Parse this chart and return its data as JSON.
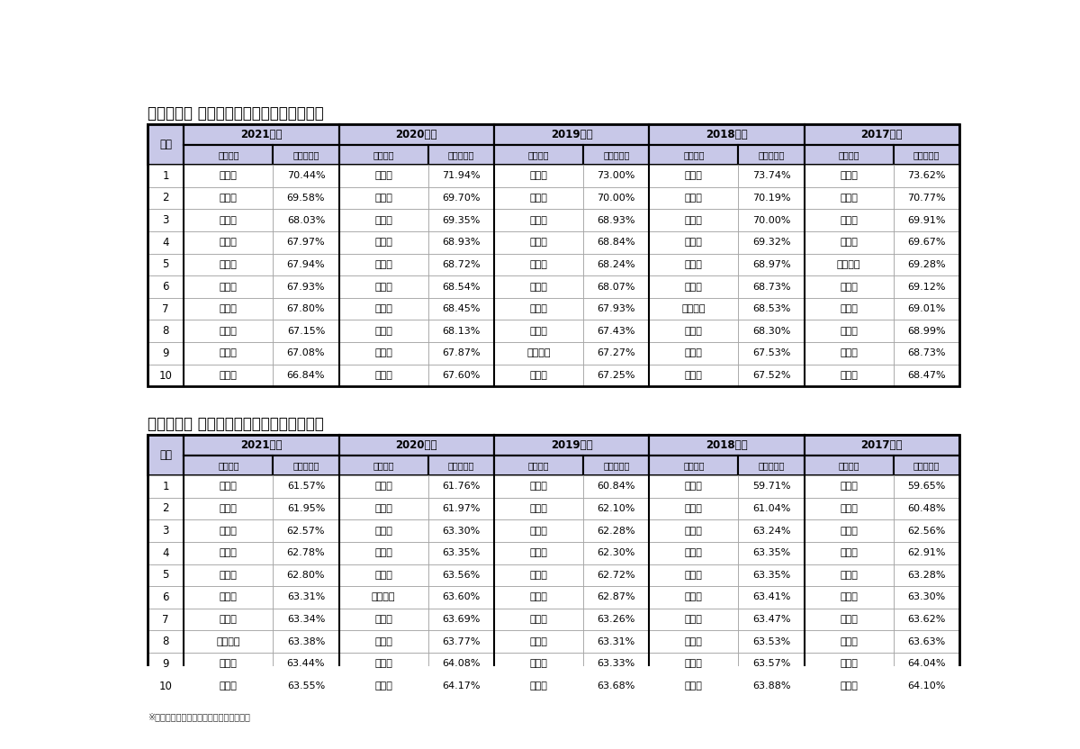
{
  "table1_title": "都道府県別 赤字法人率ランキング（降順）",
  "table2_title": "都道府県別 赤字法人率ランキング（昇順）",
  "footer": "※出典：東京商工リサーチより作成・引用",
  "years": [
    "2021年度",
    "2020年度",
    "2019年度",
    "2018年度",
    "2017年度"
  ],
  "desc_data": [
    [
      1,
      "徳島県",
      "70.44%",
      "徳島県",
      "71.94%",
      "徳島県",
      "73.00%",
      "徳島県",
      "73.74%",
      "徳島県",
      "73.62%"
    ],
    [
      2,
      "香川県",
      "69.58%",
      "長野県",
      "69.70%",
      "長野県",
      "70.00%",
      "長野県",
      "70.19%",
      "長野県",
      "70.77%"
    ],
    [
      3,
      "長野県",
      "68.03%",
      "香川県",
      "69.35%",
      "栃木県",
      "68.93%",
      "香川県",
      "70.00%",
      "香川県",
      "69.91%"
    ],
    [
      4,
      "愛媛県",
      "67.97%",
      "栃木県",
      "68.93%",
      "香川県",
      "68.84%",
      "栃木県",
      "69.32%",
      "栃木県",
      "69.67%"
    ],
    [
      5,
      "栃木県",
      "67.94%",
      "群馬県",
      "68.72%",
      "群馬県",
      "68.24%",
      "大分県",
      "68.97%",
      "神奈川県",
      "69.28%"
    ],
    [
      6,
      "群馬県",
      "67.93%",
      "京都府",
      "68.54%",
      "大分県",
      "68.07%",
      "群馬県",
      "68.73%",
      "愛媛県",
      "69.12%"
    ],
    [
      7,
      "京都府",
      "67.80%",
      "愛媛県",
      "68.45%",
      "愛媛県",
      "67.93%",
      "神奈川県",
      "68.53%",
      "群馬県",
      "69.01%"
    ],
    [
      8,
      "福島県",
      "67.15%",
      "山梨県",
      "68.13%",
      "熊本県",
      "67.43%",
      "愛媛県",
      "68.30%",
      "大分県",
      "68.99%"
    ],
    [
      9,
      "熊本県",
      "67.08%",
      "福島県",
      "67.87%",
      "神奈川県",
      "67.27%",
      "岡山県",
      "67.53%",
      "京都府",
      "68.73%"
    ],
    [
      10,
      "山梨県",
      "66.84%",
      "熊本県",
      "67.60%",
      "宮城県",
      "67.25%",
      "京都府",
      "67.52%",
      "静岡県",
      "68.47%"
    ]
  ],
  "asc_data": [
    [
      1,
      "佐賀県",
      "61.57%",
      "青森県",
      "61.76%",
      "沖縄県",
      "60.84%",
      "沖縄県",
      "59.71%",
      "沖縄県",
      "59.65%"
    ],
    [
      2,
      "青森県",
      "61.95%",
      "佐賀県",
      "61.97%",
      "佐賀県",
      "62.10%",
      "青森県",
      "61.04%",
      "青森県",
      "60.48%"
    ],
    [
      3,
      "高知県",
      "62.57%",
      "福井県",
      "63.30%",
      "青森県",
      "62.28%",
      "山形県",
      "63.24%",
      "岩手県",
      "62.56%"
    ],
    [
      4,
      "長崎県",
      "62.78%",
      "北海道",
      "63.35%",
      "大阪府",
      "62.30%",
      "大阪府",
      "63.35%",
      "長崎県",
      "62.91%"
    ],
    [
      5,
      "福井県",
      "62.80%",
      "長崎県",
      "63.56%",
      "福岡県",
      "62.72%",
      "岩手県",
      "63.35%",
      "山形県",
      "63.28%"
    ],
    [
      6,
      "福岡県",
      "63.31%",
      "和歌山県",
      "63.60%",
      "北海道",
      "62.87%",
      "福岡県",
      "63.41%",
      "佐賀県",
      "63.30%"
    ],
    [
      7,
      "山口県",
      "63.34%",
      "山口県",
      "63.69%",
      "富山県",
      "63.26%",
      "佐賀県",
      "63.47%",
      "北海道",
      "63.62%"
    ],
    [
      8,
      "和歌山県",
      "63.38%",
      "福岡県",
      "63.77%",
      "福井県",
      "63.31%",
      "北海道",
      "63.53%",
      "福岡県",
      "63.63%"
    ],
    [
      9,
      "滋賀県",
      "63.44%",
      "秋田県",
      "64.08%",
      "岩手県",
      "63.33%",
      "長崎県",
      "63.57%",
      "富山県",
      "64.04%"
    ],
    [
      10,
      "大阪府",
      "63.55%",
      "大阪府",
      "64.17%",
      "滋賀県",
      "63.68%",
      "高知県",
      "63.88%",
      "高知県",
      "64.10%"
    ]
  ],
  "header_bg": "#c8c8e8",
  "border_color": "#000000",
  "inner_border_color": "#999999",
  "title_color": "#000000",
  "background_color": "#ffffff",
  "title_fs": 12,
  "year_fs": 8.5,
  "subhdr_fs": 7.0,
  "data_fs": 8.0,
  "rank_fs": 8.5
}
